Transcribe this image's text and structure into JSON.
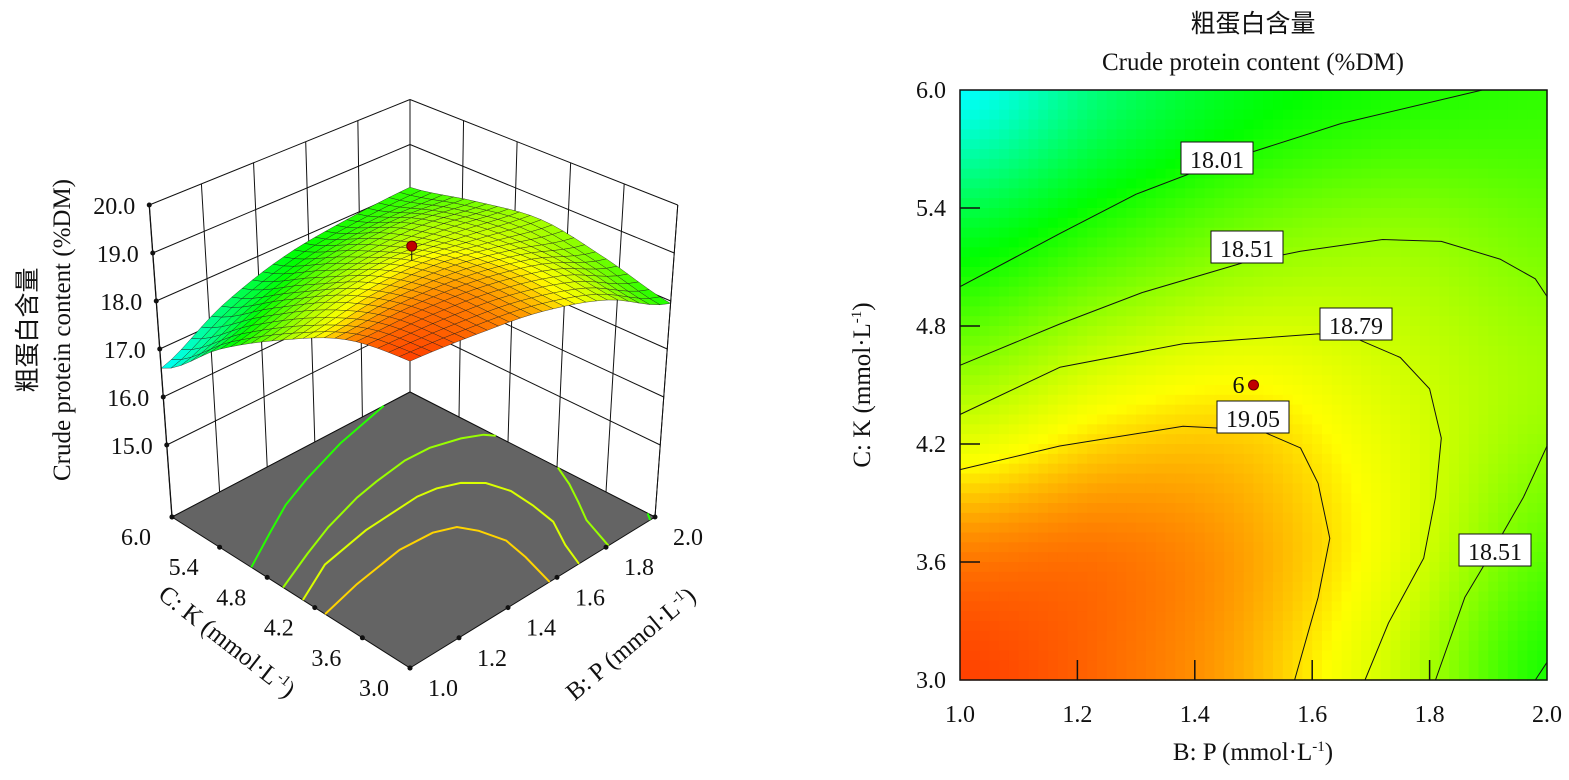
{
  "chart_data": [
    {
      "type": "surface3d",
      "zlabel_cn": "粗蛋白含量",
      "zlabel": "Crude protein content (%DM)",
      "xlabel": "B: P (mmol·L",
      "xlabel_sup": "-1",
      "xlabel_end": ")",
      "ylabel": "C: K (mmol·L",
      "ylabel_sup": "-1",
      "ylabel_end": ")",
      "xlim": [
        1.0,
        2.0
      ],
      "ylim": [
        3.0,
        6.0
      ],
      "zlim": [
        13.5,
        20.0
      ],
      "x_ticks": [
        "1.0",
        "1.2",
        "1.4",
        "1.6",
        "1.8",
        "2.0"
      ],
      "y_ticks": [
        "3.0",
        "3.6",
        "4.2",
        "4.8",
        "5.4",
        "6.0"
      ],
      "z_ticks": [
        "15.0",
        "16.0",
        "17.0",
        "18.0",
        "19.0",
        "20.0"
      ],
      "grid": {
        "B": [
          1.0,
          1.25,
          1.5,
          1.75,
          2.0
        ],
        "K": [
          3.0,
          3.75,
          4.5,
          5.25,
          6.0
        ],
        "z": [
          [
            19.4,
            19.3,
            19.12,
            18.7,
            17.95
          ],
          [
            19.2,
            19.25,
            19.15,
            18.85,
            18.3
          ],
          [
            18.55,
            18.85,
            18.95,
            18.77,
            18.55
          ],
          [
            17.7,
            18.1,
            18.4,
            18.5,
            18.35
          ],
          [
            16.6,
            17.3,
            17.75,
            17.95,
            18.05
          ]
        ]
      },
      "floor_color": "#646464",
      "design_point": {
        "B": 1.5,
        "K": 4.5,
        "value": 19.25,
        "color": "#c00000"
      }
    },
    {
      "type": "contour",
      "title_cn": "粗蛋白含量",
      "title": "Crude protein content (%DM)",
      "xlabel": "B: P (mmol·L",
      "xlabel_sup": "-1",
      "xlabel_end": ")",
      "ylabel": "C: K (mmol·L",
      "ylabel_sup": "-1",
      "ylabel_end": ")",
      "xlim": [
        1.0,
        2.0
      ],
      "ylim": [
        3.0,
        6.0
      ],
      "x_ticks": [
        "1.0",
        "1.2",
        "1.4",
        "1.6",
        "1.8",
        "2.0"
      ],
      "y_ticks": [
        "3.0",
        "3.6",
        "4.2",
        "4.8",
        "5.4",
        "6.0"
      ],
      "colormap": [
        "#0000ff",
        "#00ffff",
        "#00ff00",
        "#ffff00",
        "#ff2a00"
      ],
      "colormap_values": [
        16.0,
        16.6,
        17.85,
        18.95,
        19.45
      ],
      "contours": [
        {
          "level": "18.01",
          "points": [
            [
              1.0,
              5.0
            ],
            [
              1.17,
              5.27
            ],
            [
              1.3,
              5.47
            ],
            [
              1.44,
              5.63
            ],
            [
              1.65,
              5.83
            ],
            [
              1.89,
              6.0
            ]
          ]
        },
        {
          "level": "18.01",
          "points": [
            [
              1.98,
              3.0
            ],
            [
              2.0,
              3.09
            ]
          ]
        },
        {
          "level": "18.51",
          "points": [
            [
              1.0,
              4.6
            ],
            [
              1.17,
              4.81
            ],
            [
              1.31,
              4.97
            ],
            [
              1.48,
              5.12
            ],
            [
              1.58,
              5.18
            ],
            [
              1.72,
              5.24
            ],
            [
              1.82,
              5.23
            ],
            [
              1.92,
              5.14
            ],
            [
              1.98,
              5.04
            ],
            [
              2.0,
              4.95
            ]
          ]
        },
        {
          "level": "18.51",
          "points": [
            [
              2.0,
              4.19
            ],
            [
              1.96,
              3.93
            ],
            [
              1.91,
              3.67
            ],
            [
              1.86,
              3.42
            ],
            [
              1.81,
              3.0
            ]
          ]
        },
        {
          "level": "18.79",
          "points": [
            [
              1.0,
              4.35
            ],
            [
              1.17,
              4.59
            ],
            [
              1.38,
              4.71
            ],
            [
              1.61,
              4.76
            ],
            [
              1.68,
              4.73
            ],
            [
              1.75,
              4.64
            ],
            [
              1.8,
              4.48
            ],
            [
              1.82,
              4.23
            ],
            [
              1.81,
              3.93
            ],
            [
              1.79,
              3.62
            ],
            [
              1.73,
              3.29
            ],
            [
              1.69,
              3.0
            ]
          ]
        },
        {
          "level": "19.05",
          "points": [
            [
              1.0,
              4.07
            ],
            [
              1.17,
              4.19
            ],
            [
              1.38,
              4.29
            ],
            [
              1.51,
              4.27
            ],
            [
              1.58,
              4.18
            ],
            [
              1.61,
              4.0
            ],
            [
              1.63,
              3.72
            ],
            [
              1.61,
              3.42
            ],
            [
              1.57,
              3.0
            ]
          ]
        }
      ],
      "design_point": {
        "B": 1.5,
        "K": 4.5,
        "label": "6",
        "color": "#c00000"
      }
    }
  ]
}
